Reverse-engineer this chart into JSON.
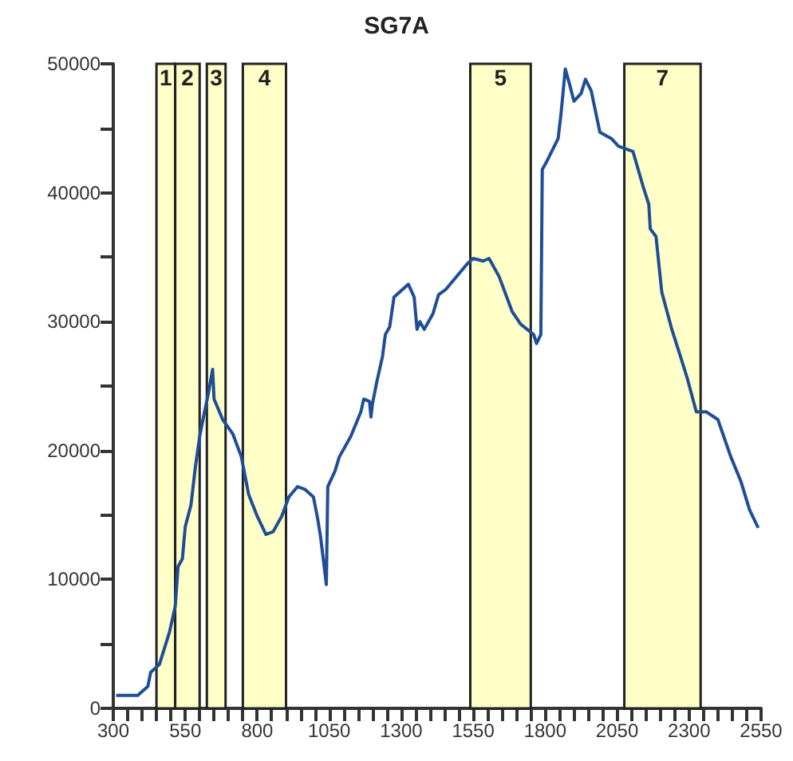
{
  "chart_data": {
    "type": "line",
    "title": "SG7A",
    "x": [
      310,
      385,
      420,
      430,
      460,
      495,
      515,
      525,
      540,
      550,
      570,
      585,
      600,
      615,
      630,
      645,
      650,
      680,
      715,
      745,
      770,
      800,
      830,
      855,
      885,
      910,
      940,
      965,
      995,
      1010,
      1020,
      1040,
      1045,
      1070,
      1085,
      1125,
      1160,
      1170,
      1190,
      1195,
      1200,
      1215,
      1235,
      1245,
      1260,
      1275,
      1325,
      1345,
      1355,
      1365,
      1380,
      1410,
      1430,
      1455,
      1530,
      1550,
      1585,
      1605,
      1640,
      1685,
      1715,
      1760,
      1770,
      1785,
      1790,
      1805,
      1845,
      1855,
      1870,
      1885,
      1900,
      1925,
      1940,
      1960,
      1990,
      2030,
      2055,
      2105,
      2140,
      2160,
      2165,
      2185,
      2205,
      2240,
      2270,
      2295,
      2325,
      2360,
      2400,
      2445,
      2480,
      2510,
      2540
    ],
    "series": [
      {
        "color": "#1f4e96",
        "values": [
          1000,
          1000,
          1700,
          2800,
          3400,
          5900,
          7900,
          11000,
          11600,
          14100,
          15800,
          18700,
          21100,
          22800,
          24400,
          26300,
          24000,
          22400,
          21300,
          19500,
          16600,
          14900,
          13500,
          13700,
          14900,
          16400,
          17200,
          17000,
          16400,
          14700,
          13300,
          9600,
          17200,
          18400,
          19500,
          21100,
          23000,
          24000,
          23800,
          22600,
          23600,
          25300,
          27300,
          29000,
          29600,
          31900,
          32900,
          31900,
          29400,
          30000,
          29400,
          30600,
          32100,
          32500,
          34500,
          34900,
          34700,
          34900,
          33500,
          30800,
          29800,
          29000,
          28300,
          29000,
          41800,
          42400,
          44200,
          46100,
          49600,
          48400,
          47100,
          47700,
          48800,
          47900,
          44700,
          44200,
          43600,
          43200,
          40500,
          39100,
          37200,
          36600,
          32300,
          29400,
          27300,
          25500,
          23000,
          23000,
          22400,
          19500,
          17600,
          15400,
          14000
        ]
      }
    ],
    "xlim": [
      300,
      2550
    ],
    "xticks": [
      300,
      {
        "value": 350,
        "label": null
      },
      {
        "value": 400,
        "label": null
      },
      {
        "value": 450,
        "label": null
      },
      {
        "value": 500,
        "label": null
      },
      550,
      {
        "value": 600,
        "label": null
      },
      {
        "value": 650,
        "label": null
      },
      {
        "value": 700,
        "label": null
      },
      {
        "value": 750,
        "label": null
      },
      800,
      {
        "value": 850,
        "label": null
      },
      {
        "value": 900,
        "label": null
      },
      {
        "value": 950,
        "label": null
      },
      {
        "value": 1000,
        "label": null
      },
      1050,
      {
        "value": 1100,
        "label": null
      },
      {
        "value": 1150,
        "label": null
      },
      {
        "value": 1200,
        "label": null
      },
      {
        "value": 1250,
        "label": null
      },
      1300,
      {
        "value": 1350,
        "label": null
      },
      {
        "value": 1400,
        "label": null
      },
      {
        "value": 1450,
        "label": null
      },
      {
        "value": 1500,
        "label": null
      },
      1550,
      {
        "value": 1600,
        "label": null
      },
      {
        "value": 1650,
        "label": null
      },
      {
        "value": 1700,
        "label": null
      },
      {
        "value": 1750,
        "label": null
      },
      1800,
      {
        "value": 1850,
        "label": null
      },
      {
        "value": 1900,
        "label": null
      },
      {
        "value": 1950,
        "label": null
      },
      {
        "value": 2000,
        "label": null
      },
      2050,
      {
        "value": 2100,
        "label": null
      },
      {
        "value": 2150,
        "label": null
      },
      {
        "value": 2200,
        "label": null
      },
      {
        "value": 2250,
        "label": null
      },
      2300,
      {
        "value": 2350,
        "label": null
      },
      {
        "value": 2400,
        "label": null
      },
      {
        "value": 2450,
        "label": null
      },
      {
        "value": 2500,
        "label": null
      },
      2550
    ],
    "ylim": [
      0,
      50000
    ],
    "yticks": [
      0,
      {
        "value": 5000,
        "label": null
      },
      10000,
      {
        "value": 15000,
        "label": null
      },
      20000,
      {
        "value": 25000,
        "label": null
      },
      30000,
      {
        "value": 35000,
        "label": null
      },
      40000,
      {
        "value": 45000,
        "label": null
      },
      50000
    ],
    "bands": [
      {
        "axis": "x",
        "from": 450,
        "to": 515,
        "label": "1",
        "color": "#ffffc8"
      },
      {
        "axis": "x",
        "from": 515,
        "to": 600,
        "label": "2",
        "color": "#ffffc8"
      },
      {
        "axis": "x",
        "from": 625,
        "to": 690,
        "label": "3",
        "color": "#ffffc8"
      },
      {
        "axis": "x",
        "from": 750,
        "to": 900,
        "label": "4",
        "color": "#ffffc8"
      },
      {
        "axis": "x",
        "from": 1540,
        "to": 1750,
        "label": "5",
        "color": "#ffffc8"
      },
      {
        "axis": "x",
        "from": 2075,
        "to": 2340,
        "label": "7",
        "color": "#ffffc8"
      }
    ],
    "marker": "none",
    "line_style": "solid"
  }
}
